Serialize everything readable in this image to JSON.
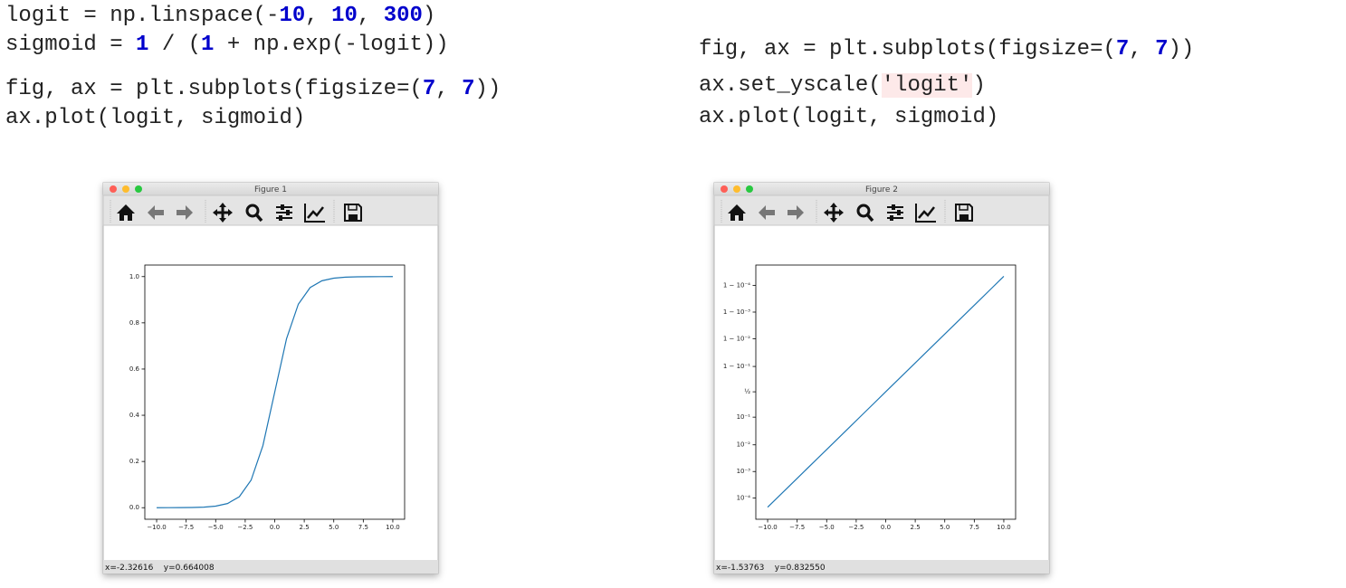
{
  "code": {
    "left": [
      [
        {
          "text": "logit = np.linspace(-"
        },
        {
          "text": "10",
          "style": "number"
        },
        {
          "text": ", "
        },
        {
          "text": "10",
          "style": "number"
        },
        {
          "text": ", "
        },
        {
          "text": "300",
          "style": "number"
        },
        {
          "text": ")"
        }
      ],
      [
        {
          "text": "sigmoid = "
        },
        {
          "text": "1",
          "style": "number"
        },
        {
          "text": " / ("
        },
        {
          "text": "1",
          "style": "number"
        },
        {
          "text": " + np.exp(-logit))"
        }
      ],
      [
        {
          "text": "fig, ax = plt.subplots(figsize=("
        },
        {
          "text": "7",
          "style": "number"
        },
        {
          "text": ", "
        },
        {
          "text": "7",
          "style": "number"
        },
        {
          "text": "))"
        }
      ],
      [
        {
          "text": "ax.plot(logit, sigmoid)"
        }
      ]
    ],
    "right": [
      [
        {
          "text": "fig, ax = plt.subplots(figsize=("
        },
        {
          "text": "7",
          "style": "number"
        },
        {
          "text": ", "
        },
        {
          "text": "7",
          "style": "number"
        },
        {
          "text": "))"
        }
      ],
      [
        {
          "text": "ax.set_yscale("
        },
        {
          "text": "'logit'",
          "style": "string"
        },
        {
          "text": ")"
        }
      ],
      [
        {
          "text": "ax.plot(logit, sigmoid)"
        }
      ]
    ]
  },
  "windows": [
    {
      "title": "Figure 1",
      "status": "x=-2.32616    y=0.664008"
    },
    {
      "title": "Figure 2",
      "status": "x=-1.53763    y=0.832550"
    }
  ],
  "chart_data": [
    {
      "type": "line",
      "yscale": "linear",
      "x": [
        -10,
        -9,
        -8,
        -7,
        -6,
        -5,
        -4,
        -3,
        -2,
        -1,
        0,
        1,
        2,
        3,
        4,
        5,
        6,
        7,
        8,
        9,
        10
      ],
      "series": [
        {
          "color": "#1f77b4",
          "values": [
            4.54e-05,
            0.0001234,
            0.000335,
            0.000911,
            0.002473,
            0.006693,
            0.017986,
            0.047426,
            0.119203,
            0.268941,
            0.5,
            0.731059,
            0.880797,
            0.952574,
            0.982014,
            0.993307,
            0.997527,
            0.999089,
            0.999665,
            0.999877,
            0.999955
          ]
        }
      ],
      "xlim": [
        -11,
        11
      ],
      "xticks": [
        {
          "value": -10,
          "label": "−10.0"
        },
        {
          "value": -7.5,
          "label": "−7.5"
        },
        {
          "value": -5,
          "label": "−5.0"
        },
        {
          "value": -2.5,
          "label": "−2.5"
        },
        {
          "value": 0,
          "label": "0.0"
        },
        2.5,
        {
          "value": 5,
          "label": "5.0"
        },
        7.5,
        {
          "value": 10,
          "label": "10.0"
        }
      ],
      "ylim": [
        -0.05,
        1.05
      ],
      "yticks": [
        {
          "value": 0,
          "label": "0.0"
        },
        0.2,
        0.4,
        0.6,
        0.8,
        {
          "value": 1,
          "label": "1.0"
        }
      ]
    },
    {
      "type": "line",
      "yscale": "logit",
      "x": [
        -10,
        -9,
        -8,
        -7,
        -6,
        -5,
        -4,
        -3,
        -2,
        -1,
        0,
        1,
        2,
        3,
        4,
        5,
        6,
        7,
        8,
        9,
        10
      ],
      "series": [
        {
          "color": "#1f77b4",
          "values": [
            4.54e-05,
            0.0001234,
            0.000335,
            0.000911,
            0.002473,
            0.006693,
            0.017986,
            0.047426,
            0.119203,
            0.268941,
            0.5,
            0.731059,
            0.880797,
            0.952574,
            0.982014,
            0.993307,
            0.997527,
            0.999089,
            0.999665,
            0.999877,
            0.999955
          ]
        }
      ],
      "xlim": [
        -11,
        11
      ],
      "xticks": [
        {
          "value": -10,
          "label": "−10.0"
        },
        {
          "value": -7.5,
          "label": "−7.5"
        },
        {
          "value": -5,
          "label": "−5.0"
        },
        {
          "value": -2.5,
          "label": "−2.5"
        },
        {
          "value": 0,
          "label": "0.0"
        },
        2.5,
        {
          "value": 5,
          "label": "5.0"
        },
        7.5,
        {
          "value": 10,
          "label": "10.0"
        }
      ],
      "ylim": [
        1.6e-05,
        0.999983
      ],
      "yticks": [
        {
          "value": 0.9999,
          "label": "1 − 10⁻⁴"
        },
        {
          "value": 0.999,
          "label": "1 − 10⁻³"
        },
        {
          "value": 0.99,
          "label": "1 − 10⁻²"
        },
        {
          "value": 0.9,
          "label": "1 − 10⁻¹"
        },
        {
          "value": 0.5,
          "label": "½"
        },
        {
          "value": 0.1,
          "label": "10⁻¹"
        },
        {
          "value": 0.01,
          "label": "10⁻²"
        },
        {
          "value": 0.001,
          "label": "10⁻³"
        },
        {
          "value": 0.0001,
          "label": "10⁻⁴"
        }
      ]
    }
  ]
}
